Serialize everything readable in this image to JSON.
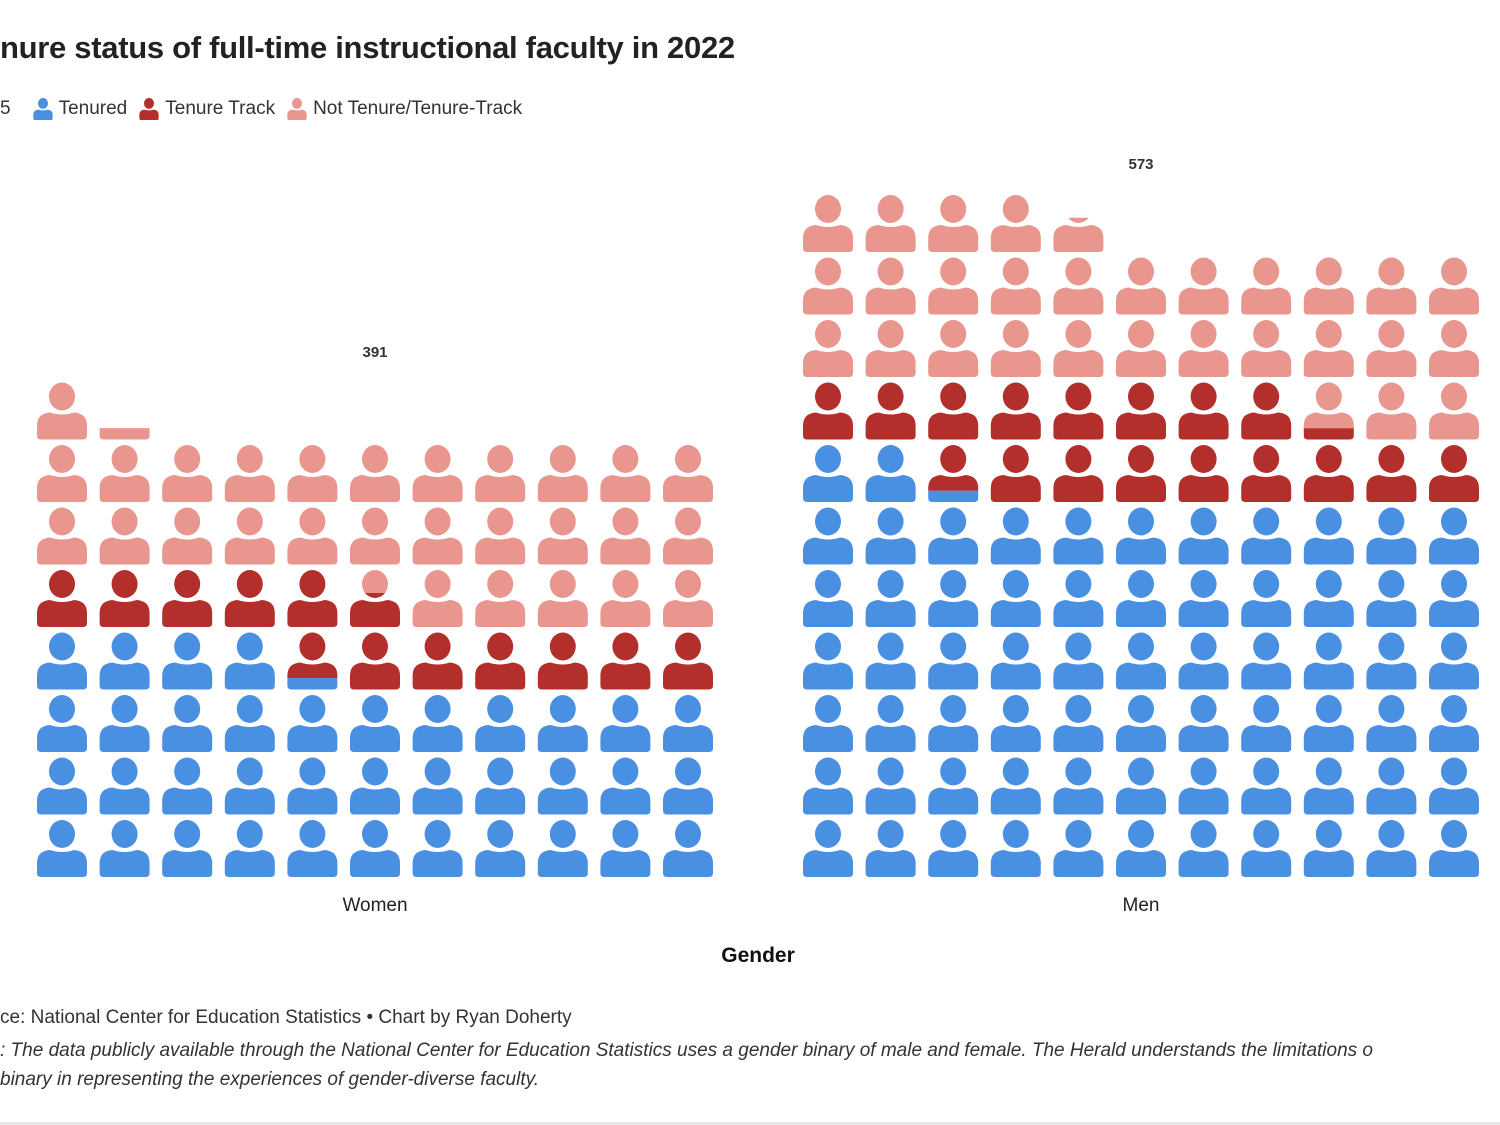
{
  "title": "nure status of full-time instructional faculty in 2022",
  "legend": {
    "unit_label": "5",
    "items": [
      {
        "label": "Tenured",
        "color": "#4a90e2"
      },
      {
        "label": "Tenure Track",
        "color": "#b22f2b"
      },
      {
        "label": "Not Tenure/Tenure-Track",
        "color": "#e8968e"
      }
    ]
  },
  "chart_data": {
    "type": "pictogram",
    "units_per_icon": 5,
    "icons_per_row": 11,
    "xlabel": "Gender",
    "categories": [
      "Women",
      "Men"
    ],
    "totals": [
      "391",
      "573"
    ],
    "series": [
      {
        "name": "Tenured",
        "values": [
          186,
          341
        ]
      },
      {
        "name": "Tenure Track",
        "values": [
          62,
          85
        ]
      },
      {
        "name": "Not Tenure/Tenure-Track",
        "values": [
          143,
          147
        ]
      }
    ]
  },
  "footer": {
    "source": "ce: National Center for Education Statistics • Chart by Ryan Doherty",
    "note_line1": ": The data publicly available through the National Center for Education Statistics uses a gender binary of male and female. The Herald understands the limitations o",
    "note_line2": "binary in representing the experiences of gender-diverse faculty."
  }
}
